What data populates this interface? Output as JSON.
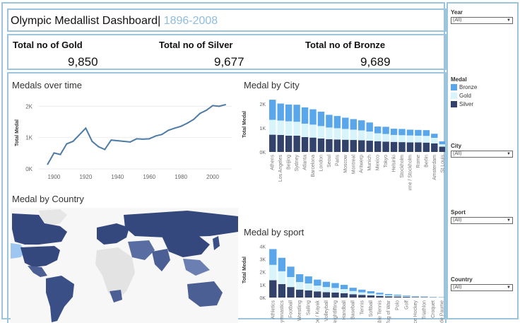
{
  "dashboard": {
    "title": "Olympic Medallist Dashboard|",
    "year_range": "1896-2008"
  },
  "kpis": [
    {
      "label": "Total no of Gold",
      "value": "9,850"
    },
    {
      "label": "Total no of Silver",
      "value": "9,677"
    },
    {
      "label": "Total no of Bronze",
      "value": "9,689"
    }
  ],
  "colors": {
    "bronze": "#5aa6ea",
    "gold": "#d8f4fb",
    "silver": "#33426b",
    "line": "#4e7ba6",
    "map_light": "#9dc7f0",
    "map_dark": "#35487e",
    "border": "#9cc4dc"
  },
  "sections": {
    "over_time": "Medals over time",
    "by_city": "Medal by City",
    "by_country": "Medal by Country",
    "by_sport": "Medal by sport"
  },
  "filters": {
    "year": {
      "label": "Year",
      "value": "(All)"
    },
    "medal_label": "Medal",
    "city": {
      "label": "City",
      "value": "(All)"
    },
    "sport": {
      "label": "Sport",
      "value": "(All)"
    },
    "country": {
      "label": "Country",
      "value": "(All)"
    }
  },
  "legend": [
    "Bronze",
    "Gold",
    "Silver"
  ],
  "chart_data": [
    {
      "type": "line",
      "title": "Medals over time",
      "ylabel": "Total Medal",
      "xlabel": "",
      "xlim": [
        1890,
        2012
      ],
      "ylim": [
        0,
        2300
      ],
      "x_ticks": [
        "1900",
        "1920",
        "1940",
        "1960",
        "1980",
        "2000"
      ],
      "y_ticks": [
        "0K",
        "1K",
        "2K"
      ],
      "x": [
        1896,
        1900,
        1904,
        1908,
        1912,
        1920,
        1924,
        1928,
        1932,
        1936,
        1948,
        1952,
        1956,
        1960,
        1964,
        1968,
        1972,
        1976,
        1980,
        1984,
        1988,
        1992,
        1996,
        2000,
        2004,
        2008
      ],
      "values": [
        150,
        510,
        460,
        800,
        880,
        1300,
        880,
        710,
        620,
        920,
        860,
        960,
        950,
        960,
        1050,
        1100,
        1230,
        1300,
        1360,
        1460,
        1580,
        1770,
        1870,
        2020,
        1998,
        2050
      ]
    },
    {
      "type": "bar",
      "title": "Medal by City",
      "ylabel": "Total Medal",
      "y_ticks": [
        "0K",
        "1K",
        "2K"
      ],
      "ylim": [
        0,
        2300
      ],
      "categories": [
        "Athens",
        "Los Angeles",
        "Beijing",
        "Sydney",
        "Atlanta",
        "Barcelona",
        "London",
        "Seoul",
        "Paris",
        "Moscow",
        "Montreal",
        "Antwerp",
        "Munich",
        "Mexico",
        "Tokyo",
        "Helsinki",
        "Stockholm",
        "Melbourne / Stockholm",
        "Rome",
        "Berlin",
        "Amsterdam",
        "St Louis"
      ],
      "series": [
        {
          "name": "Silver",
          "values": [
            720,
            710,
            680,
            680,
            620,
            600,
            560,
            530,
            520,
            510,
            500,
            490,
            470,
            450,
            430,
            420,
            410,
            400,
            400,
            390,
            360,
            220
          ]
        },
        {
          "name": "Gold",
          "values": [
            620,
            600,
            600,
            580,
            560,
            540,
            520,
            490,
            470,
            450,
            430,
            410,
            380,
            330,
            320,
            290,
            290,
            290,
            280,
            280,
            230,
            100
          ]
        },
        {
          "name": "Bronze",
          "values": [
            840,
            710,
            700,
            710,
            680,
            640,
            600,
            530,
            510,
            470,
            440,
            420,
            380,
            280,
            300,
            260,
            260,
            240,
            240,
            240,
            170,
            120
          ]
        }
      ]
    },
    {
      "type": "bar",
      "title": "Medal by sport",
      "ylabel": "Total Medal",
      "y_ticks": [
        "0K",
        "1K",
        "2K",
        "3K",
        "4K"
      ],
      "ylim": [
        0,
        4300
      ],
      "categories": [
        "Athletics",
        "Gymnastics",
        "Football",
        "Wrestling",
        "Sailing",
        "Canoe / Kayak",
        "Volleyball",
        "Weightlifting",
        "Handball",
        "Baseball",
        "Tennis",
        "Softball",
        "Table Tennis",
        "Tug of War",
        "Polo",
        "Golf",
        "Ice Hockey",
        "Triathlon",
        "Croquet",
        "Jeu de Paume"
      ],
      "series": [
        {
          "name": "Silver",
          "values": [
            1350,
            1050,
            820,
            620,
            560,
            480,
            420,
            390,
            340,
            260,
            210,
            170,
            130,
            95,
            80,
            55,
            40,
            28,
            20,
            15
          ]
        },
        {
          "name": "Gold",
          "values": [
            1200,
            1000,
            780,
            590,
            540,
            450,
            400,
            360,
            320,
            250,
            200,
            160,
            120,
            90,
            70,
            50,
            36,
            25,
            18,
            12
          ]
        },
        {
          "name": "Bronze",
          "values": [
            1230,
            1050,
            810,
            610,
            550,
            470,
            410,
            380,
            330,
            255,
            205,
            165,
            125,
            92,
            75,
            52,
            38,
            27,
            19,
            13
          ]
        }
      ]
    }
  ]
}
